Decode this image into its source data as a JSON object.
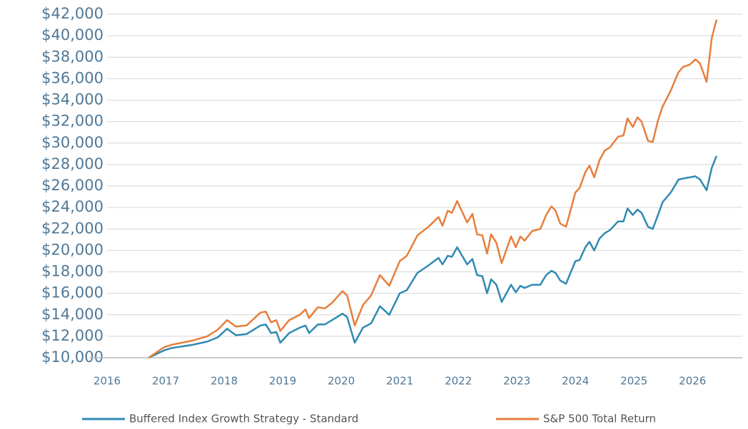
{
  "chart_data": {
    "type": "line",
    "x": [
      2016.71,
      2016.98,
      2017.1,
      2017.46,
      2017.71,
      2017.89,
      2018.05,
      2018.2,
      2018.38,
      2018.62,
      2018.71,
      2018.8,
      2018.89,
      2018.96,
      2019.11,
      2019.29,
      2019.39,
      2019.45,
      2019.6,
      2019.72,
      2019.84,
      2020.02,
      2020.1,
      2020.23,
      2020.37,
      2020.51,
      2020.66,
      2020.82,
      2021.0,
      2021.12,
      2021.3,
      2021.49,
      2021.66,
      2021.73,
      2021.82,
      2021.89,
      2021.98,
      2022.15,
      2022.24,
      2022.32,
      2022.41,
      2022.49,
      2022.56,
      2022.65,
      2022.74,
      2022.9,
      2022.98,
      2023.06,
      2023.13,
      2023.26,
      2023.4,
      2023.5,
      2023.59,
      2023.66,
      2023.74,
      2023.84,
      2023.93,
      2024.0,
      2024.07,
      2024.17,
      2024.24,
      2024.32,
      2024.41,
      2024.5,
      2024.59,
      2024.73,
      2024.82,
      2024.89,
      2024.98,
      2025.06,
      2025.13,
      2025.24,
      2025.32,
      2025.41,
      2025.49,
      2025.63,
      2025.76,
      2025.84,
      2025.95,
      2026.05,
      2026.13,
      2026.24,
      2026.33,
      2026.41
    ],
    "series": [
      {
        "name": "Buffered Index Growth Strategy - Standard",
        "color": "#2f8ab3",
        "values": [
          10000,
          10700,
          10900,
          11200,
          11500,
          11900,
          12700,
          12100,
          12200,
          13000,
          13100,
          12300,
          12400,
          11400,
          12300,
          12800,
          13000,
          12300,
          13100,
          13100,
          13500,
          14100,
          13800,
          11400,
          12800,
          13200,
          14800,
          14000,
          16000,
          16300,
          17900,
          18600,
          19300,
          18700,
          19500,
          19400,
          20300,
          18700,
          19200,
          17700,
          17600,
          16000,
          17300,
          16800,
          15200,
          16800,
          16100,
          16700,
          16500,
          16800,
          16800,
          17700,
          18100,
          17900,
          17200,
          16900,
          18100,
          19000,
          19100,
          20300,
          20800,
          20000,
          21100,
          21600,
          21900,
          22700,
          22700,
          23900,
          23300,
          23800,
          23500,
          22200,
          22000,
          23300,
          24500,
          25400,
          26600,
          26700,
          26800,
          26900,
          26600,
          25600,
          27700,
          28800
        ]
      },
      {
        "name": "S&P 500 Total Return",
        "color": "#e67f3c",
        "values": [
          10000,
          11000,
          11200,
          11600,
          12000,
          12600,
          13500,
          12900,
          13000,
          14200,
          14300,
          13300,
          13500,
          12500,
          13500,
          14000,
          14500,
          13700,
          14700,
          14600,
          15100,
          16200,
          15800,
          13000,
          14900,
          15800,
          17700,
          16700,
          19000,
          19500,
          21400,
          22200,
          23100,
          22300,
          23700,
          23500,
          24600,
          22600,
          23400,
          21500,
          21400,
          19700,
          21500,
          20700,
          18800,
          21300,
          20300,
          21300,
          20900,
          21800,
          22000,
          23300,
          24100,
          23700,
          22500,
          22200,
          24000,
          25400,
          25800,
          27300,
          27900,
          26800,
          28400,
          29300,
          29600,
          30600,
          30700,
          32300,
          31500,
          32400,
          32000,
          30200,
          30100,
          32100,
          33400,
          34900,
          36600,
          37100,
          37300,
          37800,
          37400,
          35700,
          39800,
          41500
        ]
      }
    ],
    "xlim": [
      2015.7,
      2026.85
    ],
    "xticks": [
      2016,
      2017,
      2018,
      2019,
      2020,
      2021,
      2022,
      2023,
      2024,
      2025,
      2026
    ],
    "ylim": [
      10000,
      42000
    ],
    "yticks": [
      {
        "value": 10000,
        "label": "$10,000"
      },
      {
        "value": 12000,
        "label": "$12,000"
      },
      {
        "value": 14000,
        "label": "$14,000"
      },
      {
        "value": 16000,
        "label": "$16,000"
      },
      {
        "value": 18000,
        "label": "$18,000"
      },
      {
        "value": 20000,
        "label": "$20,000"
      },
      {
        "value": 22000,
        "label": "$22,000"
      },
      {
        "value": 24000,
        "label": "$24,000"
      },
      {
        "value": 26000,
        "label": "$26,000"
      },
      {
        "value": 28000,
        "label": "$28,000"
      },
      {
        "value": 30000,
        "label": "$30,000"
      },
      {
        "value": 32000,
        "label": "$32,000"
      },
      {
        "value": 34000,
        "label": "$34,000"
      },
      {
        "value": 36000,
        "label": "$36,000"
      },
      {
        "value": 38000,
        "label": "$38,000"
      },
      {
        "value": 40000,
        "label": "$40,000"
      },
      {
        "value": 42000,
        "label": "$42,000"
      }
    ],
    "grid": true,
    "legend": "bottom"
  }
}
